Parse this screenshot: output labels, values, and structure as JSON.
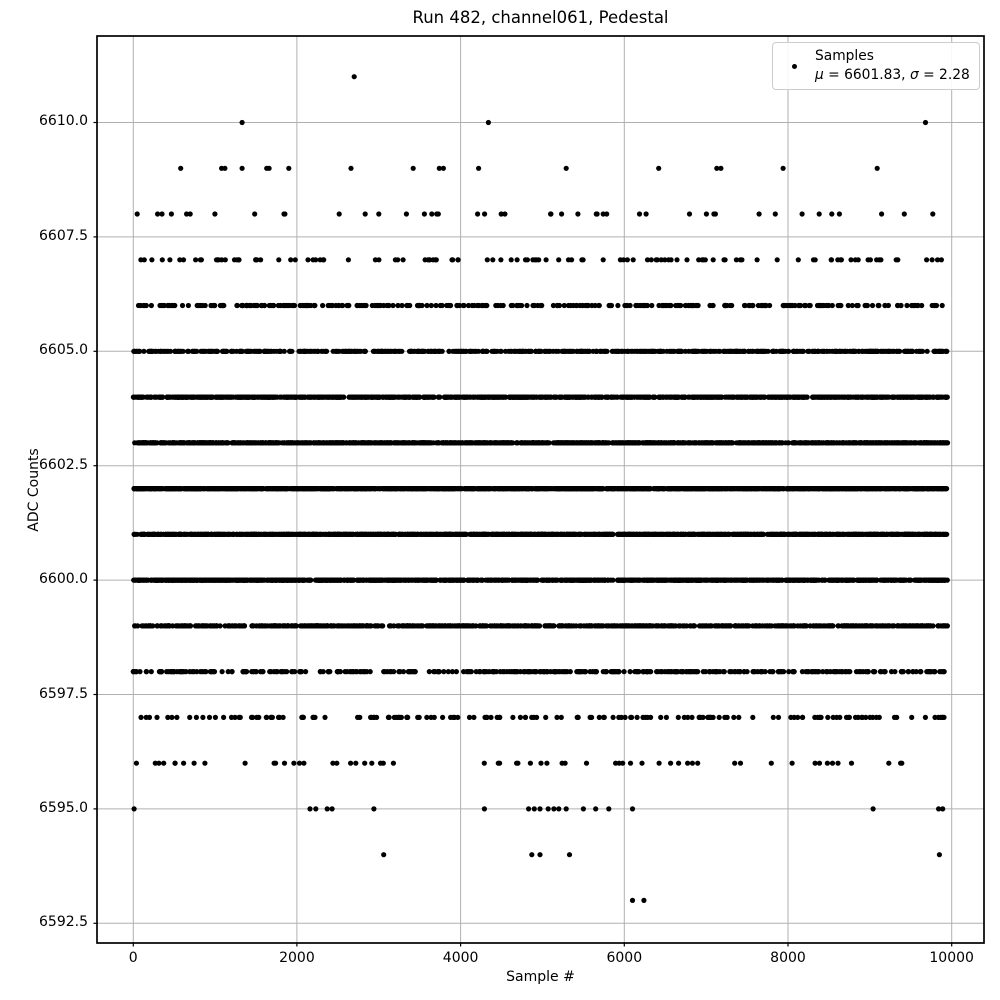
{
  "chart_data": {
    "type": "scatter",
    "title": "Run 482, channel061, Pedestal",
    "xlabel": "Sample #",
    "ylabel": "ADC Counts",
    "xlim": [
      -443,
      10395
    ],
    "ylim": [
      6592.07,
      6611.89
    ],
    "xticks": [
      {
        "label": "0",
        "value": 0
      },
      {
        "label": "2000",
        "value": 2000
      },
      {
        "label": "4000",
        "value": 4000
      },
      {
        "label": "6000",
        "value": 6000
      },
      {
        "label": "8000",
        "value": 8000
      },
      {
        "label": "10000",
        "value": 10000
      }
    ],
    "yticks": [
      {
        "label": "6592.5",
        "value": 6592.5
      },
      {
        "label": "6595.0",
        "value": 6595.0
      },
      {
        "label": "6597.5",
        "value": 6597.5
      },
      {
        "label": "6600.0",
        "value": 6600.0
      },
      {
        "label": "6602.5",
        "value": 6602.5
      },
      {
        "label": "6605.0",
        "value": 6605.0
      },
      {
        "label": "6607.5",
        "value": 6607.5
      },
      {
        "label": "6610.0",
        "value": 6610.0
      }
    ],
    "grid": true,
    "grid_color": "#b0b0b0",
    "frame_color": "#000000",
    "marker_color": "#000000",
    "legend": {
      "position": "upper right",
      "label": "Samples",
      "mu": 6601.83,
      "sigma": 2.28,
      "stats": {
        "mu_sym": "μ",
        "mu_rest": " = 6601.83, ",
        "sigma_sym": "σ",
        "sigma_rest": " = 2.28"
      }
    },
    "x_data_range": [
      0,
      9950
    ],
    "levels": [
      {
        "adc": 6593,
        "x": [
          6100,
          6240
        ]
      },
      {
        "adc": 6594,
        "x": [
          3060,
          4870,
          4970,
          5330,
          9850
        ]
      },
      {
        "adc": 6595,
        "x": [
          10,
          2160,
          2230,
          2370,
          2430,
          2940,
          4290,
          4830,
          4900,
          4970,
          5070,
          5140,
          5200,
          5290,
          5500,
          5650,
          5810,
          6100,
          9040,
          9840,
          9890
        ]
      },
      {
        "adc": 6596,
        "count": 60
      },
      {
        "adc": 6597,
        "count": 165
      },
      {
        "adc": 6598,
        "count": 400
      },
      {
        "adc": 6599,
        "count": 760
      },
      {
        "adc": 6600,
        "count": 1250
      },
      {
        "adc": 6601,
        "count": 1640
      },
      {
        "adc": 6602,
        "count": 1760
      },
      {
        "adc": 6603,
        "count": 1540
      },
      {
        "adc": 6604,
        "count": 1120
      },
      {
        "adc": 6605,
        "count": 665
      },
      {
        "adc": 6606,
        "count": 330
      },
      {
        "adc": 6607,
        "count": 115
      },
      {
        "adc": 6608,
        "count": 45
      },
      {
        "adc": 6609,
        "x": [
          580,
          1080,
          1120,
          1330,
          1630,
          1660,
          1900,
          2660,
          3420,
          3740,
          3790,
          4220,
          5290,
          6420,
          7130,
          7180,
          7940,
          9090
        ]
      },
      {
        "adc": 6610,
        "x": [
          1330,
          4340,
          9680
        ]
      },
      {
        "adc": 6611,
        "x": [
          2700
        ]
      }
    ]
  }
}
